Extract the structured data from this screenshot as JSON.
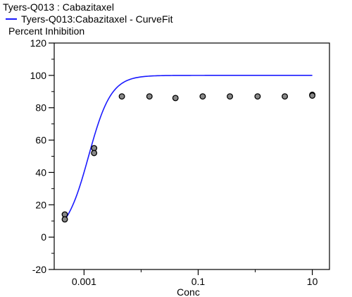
{
  "chart_data": {
    "type": "scatter",
    "title": "Tyers-Q013  :  Cabazitaxel",
    "xlabel": "Conc",
    "ylabel": "Percent Inhibition",
    "xscale": "log",
    "xlim": [
      0.0003,
      20
    ],
    "ylim": [
      -20,
      120
    ],
    "yticks": [
      -20,
      0,
      20,
      40,
      60,
      80,
      100,
      120
    ],
    "xticks": [
      0.001,
      0.1,
      10
    ],
    "xtick_labels": [
      "0.001",
      "0.1",
      "10"
    ],
    "grid": false,
    "legend": {
      "placement": "top-left",
      "label": "Tyers-Q013:Cabazitaxel - CurveFit",
      "color": "#1a1aff"
    },
    "series": [
      {
        "name": "Tyers-Q013:Cabazitaxel - CurveFit",
        "kind": "curve",
        "color": "#1a1aff",
        "bottom": 0,
        "top": 100,
        "ic50": 0.0012,
        "hill": 2.2,
        "x_range": [
          0.00046,
          10
        ]
      },
      {
        "kind": "points",
        "color": "#888888",
        "x": [
          0.00046,
          0.00046,
          0.0015,
          0.0015,
          0.0046,
          0.014,
          0.04,
          0.12,
          0.36,
          1.1,
          3.3,
          10,
          10
        ],
        "y": [
          14,
          11,
          55,
          52,
          87,
          87,
          86,
          87,
          87,
          87,
          87,
          88,
          87.5
        ]
      }
    ]
  }
}
